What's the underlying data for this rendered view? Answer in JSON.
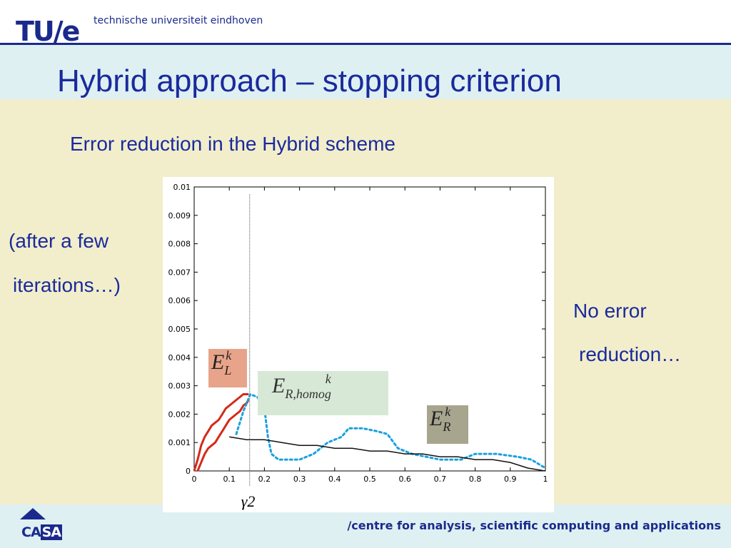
{
  "header": {
    "logo_text": "TU/e",
    "university_name": "technische universiteit eindhoven"
  },
  "slide": {
    "title": "Hybrid approach – stopping criterion",
    "subtitle": "Error reduction in the Hybrid scheme",
    "left_note": [
      "(after a few",
      "iterations…)"
    ],
    "right_note": [
      "No error",
      "reduction…"
    ]
  },
  "chart_data": {
    "type": "line",
    "xlim": [
      0,
      1
    ],
    "ylim": [
      0,
      0.01
    ],
    "x_ticks": [
      "0",
      "0.1",
      "0.2",
      "0.3",
      "0.4",
      "0.5",
      "0.6",
      "0.7",
      "0.8",
      "0.9",
      "1"
    ],
    "y_ticks": [
      "0",
      "0.001",
      "0.002",
      "0.003",
      "0.004",
      "0.005",
      "0.006",
      "0.007",
      "0.008",
      "0.009",
      "0.01"
    ],
    "gamma_line_x": 0.158,
    "gamma_label": "γ2",
    "series": [
      {
        "name": "E_L^k",
        "color": "#d42a1a",
        "style": "solid",
        "x": [
          0.0,
          0.01,
          0.02,
          0.03,
          0.04,
          0.05,
          0.06,
          0.07,
          0.08,
          0.09,
          0.1,
          0.11,
          0.12,
          0.13,
          0.14,
          0.15,
          0.155
        ],
        "y": [
          0.0,
          0.0004,
          0.0009,
          0.0012,
          0.0014,
          0.0016,
          0.0017,
          0.0018,
          0.002,
          0.0022,
          0.0023,
          0.0024,
          0.0025,
          0.0026,
          0.0027,
          0.0027,
          0.0027
        ]
      },
      {
        "name": "E_L^k (lower)",
        "color": "#d42a1a",
        "style": "solid",
        "x": [
          0.01,
          0.02,
          0.03,
          0.04,
          0.05,
          0.06,
          0.07,
          0.08,
          0.09,
          0.1,
          0.11,
          0.12,
          0.13,
          0.14,
          0.15,
          0.155
        ],
        "y": [
          0.0,
          0.0003,
          0.0006,
          0.0008,
          0.0009,
          0.001,
          0.0012,
          0.0014,
          0.0016,
          0.0018,
          0.0019,
          0.002,
          0.0021,
          0.0023,
          0.0024,
          0.0025
        ]
      },
      {
        "name": "E_R,homog^k",
        "color": "#1aa0e0",
        "style": "dotted",
        "x": [
          0.12,
          0.14,
          0.16,
          0.18,
          0.2,
          0.21,
          0.22,
          0.24,
          0.3,
          0.34,
          0.38,
          0.42,
          0.44,
          0.48,
          0.52,
          0.55,
          0.58,
          0.62,
          0.66,
          0.7,
          0.76,
          0.8,
          0.86,
          0.92,
          0.96,
          1.0
        ],
        "y": [
          0.0013,
          0.0021,
          0.0027,
          0.0026,
          0.0022,
          0.0012,
          0.0006,
          0.0004,
          0.0004,
          0.0006,
          0.001,
          0.0012,
          0.0015,
          0.0015,
          0.0014,
          0.0013,
          0.0008,
          0.0006,
          0.0005,
          0.0004,
          0.0004,
          0.0006,
          0.0006,
          0.0005,
          0.0004,
          0.0001
        ]
      },
      {
        "name": "E_R^k",
        "color": "#111111",
        "style": "solid",
        "x": [
          0.1,
          0.15,
          0.2,
          0.25,
          0.3,
          0.35,
          0.4,
          0.45,
          0.5,
          0.55,
          0.6,
          0.65,
          0.7,
          0.75,
          0.8,
          0.85,
          0.9,
          0.95,
          1.0
        ],
        "y": [
          0.0012,
          0.0011,
          0.0011,
          0.001,
          0.0009,
          0.0009,
          0.0008,
          0.0008,
          0.0007,
          0.0007,
          0.0006,
          0.0006,
          0.0005,
          0.0005,
          0.0004,
          0.0004,
          0.0003,
          0.0001,
          0.0
        ]
      }
    ],
    "labels": [
      {
        "base": "E",
        "sup": "k",
        "sub": "L",
        "box_color": "#e8a48a"
      },
      {
        "base": "E",
        "sup": "k",
        "sub": "R,homog",
        "box_color": "#d7e9d6"
      },
      {
        "base": "E",
        "sup": "k",
        "sub": "R",
        "box_color": "#a7a58e"
      }
    ]
  },
  "footer": {
    "logo_text_1": "CA",
    "logo_text_2": "SA",
    "text": "/centre for analysis, scientific computing and applications"
  }
}
